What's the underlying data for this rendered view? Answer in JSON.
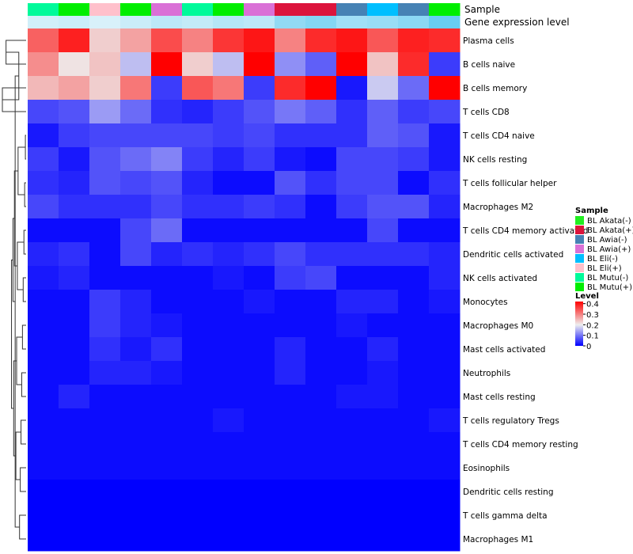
{
  "chart_data": {
    "type": "heatmap",
    "title": "",
    "annotation_labels": {
      "sample": "Sample",
      "gene_expression_level": "Gene expression level"
    },
    "columns": [
      {
        "sample": "BL Mutu(-)",
        "gene_expression_level": 0.18
      },
      {
        "sample": "BL Mutu(+)",
        "gene_expression_level": 0.19
      },
      {
        "sample": "BL Eli(+)",
        "gene_expression_level": 0.17
      },
      {
        "sample": "BL Mutu(+)",
        "gene_expression_level": 0.19
      },
      {
        "sample": "BL Awia(+)",
        "gene_expression_level": 0.21
      },
      {
        "sample": "BL Mutu(-)",
        "gene_expression_level": 0.2
      },
      {
        "sample": "BL Mutu(+)",
        "gene_expression_level": 0.22
      },
      {
        "sample": "BL Awia(+)",
        "gene_expression_level": 0.21
      },
      {
        "sample": "BL Akata(+)",
        "gene_expression_level": 0.27
      },
      {
        "sample": "BL Akata(+)",
        "gene_expression_level": 0.29
      },
      {
        "sample": "BL Awia(-)",
        "gene_expression_level": 0.25
      },
      {
        "sample": "BL Eli(-)",
        "gene_expression_level": 0.26
      },
      {
        "sample": "BL Awia(-)",
        "gene_expression_level": 0.28
      },
      {
        "sample": "BL Mutu(+)",
        "gene_expression_level": 0.33
      }
    ],
    "rows": [
      "Plasma cells",
      "B cells naive",
      "B cells memory",
      "T cells CD8",
      "T cells CD4 naive",
      "NK cells resting",
      "T cells follicular helper",
      "Macrophages M2",
      "T cells CD4 memory activated",
      "Dendritic cells activated",
      "NK cells activated",
      "Monocytes",
      "Macrophages M0",
      "Mast cells activated",
      "Neutrophils",
      "Mast cells resting",
      "T cells regulatory  Tregs",
      "T cells CD4 memory resting",
      "Eosinophils",
      "Dendritic cells resting",
      "T cells gamma delta",
      "Macrophages M1"
    ],
    "values": [
      [
        0.33,
        0.39,
        0.23,
        0.27,
        0.35,
        0.3,
        0.37,
        0.4,
        0.3,
        0.38,
        0.4,
        0.34,
        0.39,
        0.38
      ],
      [
        0.29,
        0.21,
        0.24,
        0.16,
        0.42,
        0.23,
        0.16,
        0.43,
        0.12,
        0.08,
        0.42,
        0.24,
        0.38,
        0.05
      ],
      [
        0.25,
        0.27,
        0.23,
        0.31,
        0.05,
        0.34,
        0.31,
        0.05,
        0.38,
        0.42,
        0.02,
        0.17,
        0.09,
        0.42
      ],
      [
        0.06,
        0.07,
        0.13,
        0.09,
        0.04,
        0.03,
        0.05,
        0.07,
        0.1,
        0.08,
        0.04,
        0.08,
        0.05,
        0.06
      ],
      [
        0.02,
        0.05,
        0.06,
        0.06,
        0.06,
        0.06,
        0.05,
        0.06,
        0.04,
        0.04,
        0.04,
        0.08,
        0.07,
        0.02
      ],
      [
        0.05,
        0.02,
        0.07,
        0.09,
        0.11,
        0.05,
        0.03,
        0.05,
        0.02,
        0.01,
        0.06,
        0.06,
        0.05,
        0.02
      ],
      [
        0.04,
        0.03,
        0.07,
        0.06,
        0.07,
        0.03,
        0.01,
        0.01,
        0.07,
        0.04,
        0.06,
        0.06,
        0.01,
        0.04
      ],
      [
        0.06,
        0.04,
        0.04,
        0.04,
        0.06,
        0.04,
        0.04,
        0.05,
        0.04,
        0.01,
        0.05,
        0.07,
        0.07,
        0.03
      ],
      [
        0.01,
        0.01,
        0.01,
        0.06,
        0.09,
        0.01,
        0.01,
        0.01,
        0.01,
        0.01,
        0.01,
        0.06,
        0.01,
        0.01
      ],
      [
        0.03,
        0.04,
        0.01,
        0.06,
        0.03,
        0.04,
        0.03,
        0.04,
        0.06,
        0.04,
        0.04,
        0.04,
        0.04,
        0.03
      ],
      [
        0.02,
        0.03,
        0.01,
        0.01,
        0.01,
        0.01,
        0.02,
        0.01,
        0.05,
        0.06,
        0.01,
        0.01,
        0.01,
        0.03
      ],
      [
        0.01,
        0.01,
        0.05,
        0.03,
        0.01,
        0.01,
        0.01,
        0.02,
        0.01,
        0.01,
        0.03,
        0.03,
        0.01,
        0.02
      ],
      [
        0.01,
        0.01,
        0.05,
        0.03,
        0.02,
        0.01,
        0.01,
        0.01,
        0.01,
        0.01,
        0.02,
        0.01,
        0.01,
        0.01
      ],
      [
        0.01,
        0.01,
        0.04,
        0.02,
        0.04,
        0.01,
        0.01,
        0.01,
        0.03,
        0.01,
        0.01,
        0.03,
        0.01,
        0.01
      ],
      [
        0.01,
        0.01,
        0.03,
        0.03,
        0.02,
        0.01,
        0.01,
        0.01,
        0.03,
        0.01,
        0.01,
        0.02,
        0.01,
        0.01
      ],
      [
        0.01,
        0.03,
        0.01,
        0.01,
        0.01,
        0.01,
        0.01,
        0.01,
        0.01,
        0.01,
        0.02,
        0.02,
        0.01,
        0.01
      ],
      [
        0.01,
        0.01,
        0.01,
        0.01,
        0.01,
        0.01,
        0.02,
        0.01,
        0.01,
        0.01,
        0.01,
        0.01,
        0.01,
        0.02
      ],
      [
        0.01,
        0.01,
        0.01,
        0.01,
        0.01,
        0.01,
        0.01,
        0.01,
        0.01,
        0.01,
        0.01,
        0.01,
        0.01,
        0.01
      ],
      [
        0.01,
        0.01,
        0.01,
        0.01,
        0.01,
        0.01,
        0.01,
        0.01,
        0.01,
        0.01,
        0.01,
        0.01,
        0.01,
        0.01
      ],
      [
        0.0,
        0.0,
        0.0,
        0.0,
        0.0,
        0.0,
        0.0,
        0.0,
        0.0,
        0.0,
        0.0,
        0.0,
        0.0,
        0.0
      ],
      [
        0.0,
        0.0,
        0.0,
        0.0,
        0.0,
        0.0,
        0.0,
        0.0,
        0.0,
        0.0,
        0.0,
        0.0,
        0.0,
        0.0
      ],
      [
        0.0,
        0.0,
        0.0,
        0.0,
        0.0,
        0.0,
        0.0,
        0.0,
        0.0,
        0.0,
        0.0,
        0.0,
        0.0,
        0.0
      ]
    ],
    "color_scale": {
      "domain": [
        0,
        0.2,
        0.42
      ],
      "colors": [
        "#0000ff",
        "#eeeeee",
        "#ff0000"
      ]
    },
    "legend": {
      "sample_title": "Sample",
      "sample_entries": [
        {
          "label": "BL Akata(-)",
          "color": "#22ee22"
        },
        {
          "label": "BL Akata(+)",
          "color": "#dc143c"
        },
        {
          "label": "BL Awia(-)",
          "color": "#4682b4"
        },
        {
          "label": "BL Awia(+)",
          "color": "#da70d6"
        },
        {
          "label": "BL Eli(-)",
          "color": "#00bfff"
        },
        {
          "label": "BL Eli(+)",
          "color": "#ffc0cb"
        },
        {
          "label": "BL Mutu(-)",
          "color": "#00fa9a"
        },
        {
          "label": "BL Mutu(+)",
          "color": "#00ee00"
        }
      ],
      "level_title": "Level",
      "level_ticks": [
        "0.4",
        "0.3",
        "0.2",
        "0.1",
        "0"
      ],
      "level_tick_values": [
        0.4,
        0.3,
        0.2,
        0.1,
        0
      ]
    },
    "annotation_color_scale": {
      "domain": [
        0.15,
        0.35
      ],
      "colors": [
        "#e6f6fb",
        "#5ac8f0"
      ]
    },
    "row_dendrogram": [
      {
        "a": 0,
        "b": 1,
        "h": 0.55
      },
      {
        "a": 2,
        "b": 3,
        "h": 0.65
      },
      {
        "a": 4,
        "b": 5,
        "h": 0.02
      },
      {
        "a": 6,
        "b": 7,
        "h": 0.04
      },
      {
        "a": 8,
        "b": 9,
        "h": 0.06
      },
      {
        "a": 10,
        "b": 11,
        "h": 0.08
      },
      {
        "a": 12,
        "b": 13,
        "h": 0.1
      },
      {
        "a": 14,
        "b": 15,
        "h": 0.12
      },
      {
        "a": 16,
        "b": 17,
        "h": 0.14
      },
      {
        "a": 18,
        "b": 19,
        "h": 0.16
      },
      {
        "a": 20,
        "b": 21,
        "h": 0.18
      },
      {
        "a": 22,
        "b": 23,
        "h": 0.2
      },
      {
        "a": 24,
        "b": 25,
        "h": 0.22
      },
      {
        "a": 26,
        "b": 27,
        "h": 0.24
      },
      {
        "a": 28,
        "b": 29,
        "h": 0.26
      },
      {
        "a": 30,
        "b": 31,
        "h": 0.28
      },
      {
        "a": 32,
        "b": 33,
        "h": 0.3
      },
      {
        "a": 34,
        "b": 35,
        "h": 0.32
      },
      {
        "a": 36,
        "b": 37,
        "h": 0.34
      },
      {
        "a": 38,
        "b": 39,
        "h": 0.36
      },
      {
        "a": 40,
        "b": 41,
        "h": 0.4
      }
    ]
  }
}
